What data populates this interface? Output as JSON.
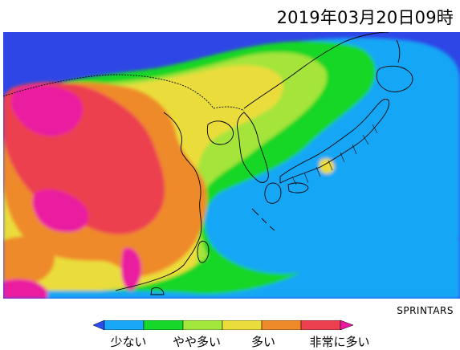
{
  "header": {
    "timestamp": "2019年03月20日09時"
  },
  "credit": "SPRINTARS",
  "legend": {
    "labels": [
      "少ない",
      "やや多い",
      "多い",
      "非常に多い"
    ],
    "colors": [
      "#2a4cf0",
      "#19a8f7",
      "#17d82a",
      "#a3e63c",
      "#eadc3a",
      "#ef8a2a",
      "#ec3f4f",
      "#ea1aa0"
    ]
  },
  "map": {
    "ocean_color": "#2fa3f7",
    "land_outline_color": "#000000"
  }
}
